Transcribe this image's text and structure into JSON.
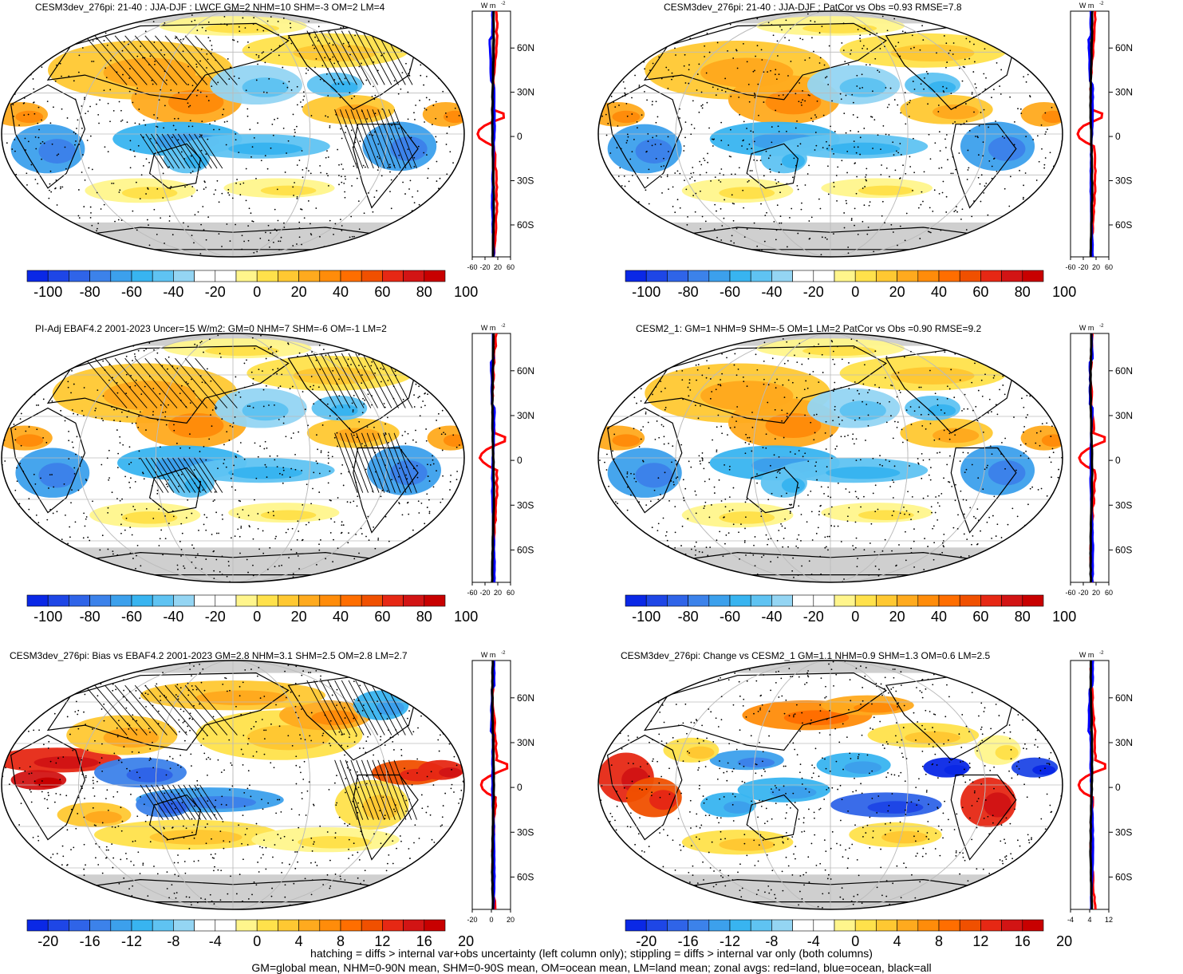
{
  "panels": [
    {
      "id": "p1",
      "title": "CESM3dev_276pi: 21-40 : JJA-DJF : LWCF GM=2 NHM=10 SHM=-3 OM=2 LM=4",
      "hatch": true,
      "scale": "std",
      "mode": "model"
    },
    {
      "id": "p2",
      "title": "CESM3dev_276pi: 21-40 : JJA-DJF : PatCor vs Obs =0.93 RMSE=7.8",
      "hatch": false,
      "scale": "std",
      "mode": "model"
    },
    {
      "id": "p3",
      "title": "PI-Adj EBAF4.2 2001-2023 Uncer=15 W/m2: GM=0 NHM=7 SHM=-6 OM=-1 LM=2",
      "hatch": true,
      "scale": "std",
      "mode": "obs"
    },
    {
      "id": "p4",
      "title": "CESM2_1: GM=1 NHM=9 SHM=-5 OM=1 LM=2 PatCor vs Obs =0.90 RMSE=9.2",
      "hatch": false,
      "scale": "std",
      "mode": "model"
    },
    {
      "id": "p5",
      "title": "CESM3dev_276pi: Bias vs EBAF4.2 2001-2023 GM=2.8 NHM=3.1 SHM=2.5 OM=2.8 LM=2.7",
      "hatch": true,
      "scale": "diff",
      "mode": "bias"
    },
    {
      "id": "p6",
      "title": "CESM3dev_276pi: Change vs CESM2_1 GM=1.1 NHM=0.9 SHM=1.3 OM=0.6 LM=2.5",
      "hatch": false,
      "scale": "diff",
      "mode": "change"
    }
  ],
  "colorbars": {
    "std": {
      "labels": [
        "-100",
        "-80",
        "-60",
        "-40",
        "-20",
        "0",
        "20",
        "40",
        "60",
        "80",
        "100"
      ]
    },
    "diff": {
      "labels": [
        "-20",
        "-16",
        "-12",
        "-8",
        "-4",
        "0",
        "4",
        "8",
        "12",
        "16",
        "20"
      ]
    }
  },
  "colors": [
    "#0a28e6",
    "#1e46e6",
    "#2f64e8",
    "#3c82ea",
    "#3ca0ec",
    "#38b4f0",
    "#5fc3f2",
    "#94d5f3",
    "#ffffff",
    "#ffffff",
    "#fff58c",
    "#ffe14b",
    "#ffc832",
    "#ffaa1e",
    "#ff8c0a",
    "#ff6e00",
    "#f05000",
    "#e62814",
    "#d21414",
    "#c80000"
  ],
  "zonal": {
    "unit": "W m",
    "lat_ticks": [
      "60N",
      "30N",
      "0",
      "30S",
      "60S"
    ],
    "x_ticks_std": [
      "-60",
      "-20",
      "20",
      "60"
    ],
    "x_ticks_p5": [
      "-20",
      "0",
      "20"
    ],
    "x_ticks_p6": [
      "-4",
      "4",
      "12"
    ]
  },
  "footer": {
    "line1": "hatching = diffs > internal var+obs uncertainty (left column only); stippling = diffs > internal var only (both columns)",
    "line2": "GM=global mean, NHM=0-90N mean, SHM=0-90S mean, OM=ocean mean, LM=land mean; zonal avgs: red=land, blue=ocean, black=all"
  }
}
